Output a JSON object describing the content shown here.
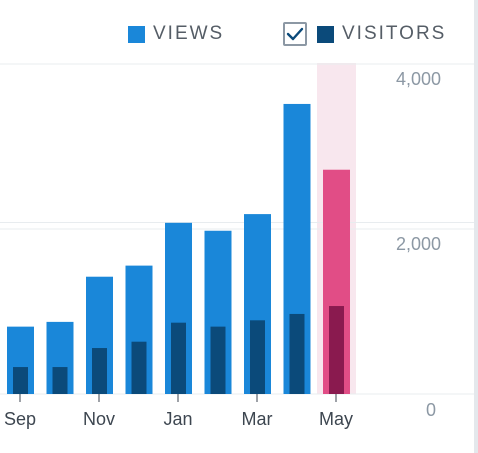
{
  "legend": {
    "views_label": "VIEWS",
    "visitors_label": "VISITORS",
    "visitors_checked": true
  },
  "colors": {
    "views": "#1a87d9",
    "visitors": "#0b4a7a",
    "highlight_views": "#e14d86",
    "highlight_visitors": "#8a1a4f",
    "highlight_bg": "#f8e7ee",
    "grid": "#e8ecef",
    "axis_text": "#8c98a4",
    "x_text": "#3d4650"
  },
  "chart_data": {
    "type": "bar",
    "series": [
      {
        "name": "VIEWS",
        "values": [
          850,
          910,
          1480,
          1620,
          2160,
          2060,
          2270,
          3660,
          2830
        ]
      },
      {
        "name": "VISITORS",
        "values": [
          340,
          340,
          580,
          660,
          900,
          850,
          930,
          1010,
          1110
        ]
      }
    ],
    "highlighted_index": 8,
    "x_tick_labels": [
      "Sep",
      "Nov",
      "Jan",
      "Mar",
      "May"
    ],
    "x_tick_indices": [
      0,
      2,
      4,
      6,
      8
    ],
    "y_ticks": [
      "4,000",
      "2,000",
      "0"
    ],
    "y_tick_values": [
      4000,
      2000,
      0
    ],
    "ylim": [
      0,
      4000
    ],
    "grid": true,
    "legend_position": "top-right"
  }
}
